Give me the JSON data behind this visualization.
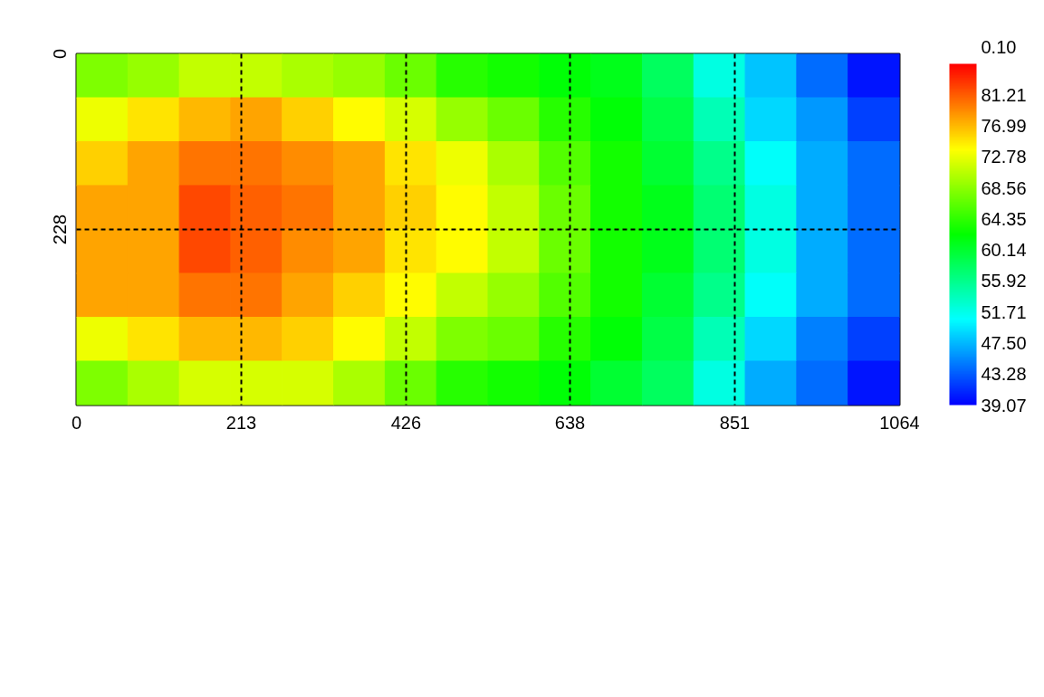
{
  "chart_data": {
    "type": "heatmap",
    "x": [
      33.25,
      99.75,
      166.25,
      232.75,
      299.25,
      365.75,
      432.25,
      498.75,
      565.25,
      631.75,
      698.25,
      764.75,
      831.25,
      897.75,
      964.25,
      1030.75
    ],
    "cells": [
      [
        68,
        69,
        71,
        71,
        70,
        69,
        67,
        64,
        63,
        62,
        61,
        58,
        52,
        48,
        44,
        40
      ],
      [
        73,
        75,
        77,
        78,
        76,
        74,
        72,
        69,
        67,
        64,
        62,
        59,
        54,
        49,
        46,
        42
      ],
      [
        76,
        78,
        80,
        80,
        79,
        78,
        75,
        73,
        70,
        66,
        63,
        60,
        56,
        51,
        47,
        44
      ],
      [
        78,
        78,
        82,
        81,
        80,
        78,
        76,
        74,
        71,
        67,
        63,
        61,
        57,
        52,
        47,
        44
      ],
      [
        78,
        78,
        82,
        81,
        79,
        78,
        75,
        74,
        71,
        67,
        63,
        61,
        57,
        52,
        47,
        44
      ],
      [
        78,
        78,
        80,
        80,
        78,
        76,
        74,
        71,
        69,
        66,
        63,
        60,
        56,
        51,
        47,
        44
      ],
      [
        73,
        75,
        77,
        77,
        76,
        74,
        71,
        68,
        67,
        64,
        62,
        59,
        54,
        49,
        45,
        42
      ],
      [
        68,
        70,
        72,
        72,
        72,
        70,
        67,
        64,
        63,
        62,
        60,
        58,
        52,
        47,
        44,
        40
      ]
    ],
    "xlim": [
      0,
      1064
    ],
    "xticks": [
      0,
      213,
      426,
      638,
      851,
      1064
    ],
    "ylim": [
      456,
      0
    ],
    "yticks": [
      0,
      228
    ],
    "clim": [
      39.07,
      85.43
    ],
    "cticks": [
      39.07,
      43.28,
      {
        "value": 47.5,
        "label": "47.50"
      },
      51.71,
      55.92,
      60.14,
      64.35,
      68.56,
      72.78,
      76.99,
      81.21
    ],
    "grid": true,
    "annotations": [
      "0.10"
    ]
  }
}
